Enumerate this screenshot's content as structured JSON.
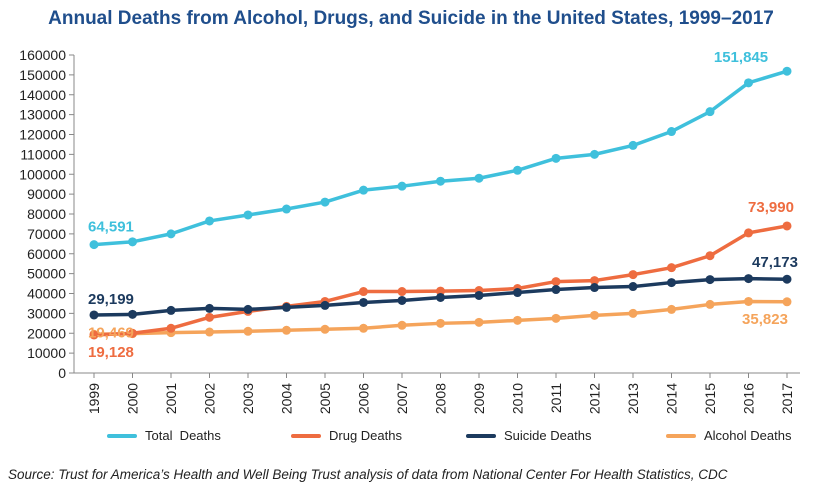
{
  "chart_data": {
    "type": "line",
    "title": "Annual Deaths from Alcohol, Drugs, and Suicide in the United States, 1999–2017",
    "xlabel": "",
    "ylabel": "",
    "categories": [
      "1999",
      "2000",
      "2001",
      "2002",
      "2003",
      "2004",
      "2005",
      "2006",
      "2007",
      "2008",
      "2009",
      "2010",
      "2011",
      "2012",
      "2013",
      "2014",
      "2015",
      "2016",
      "2017"
    ],
    "ylim": [
      0,
      160000
    ],
    "yticks": [
      "0",
      "10000",
      "20000",
      "30000",
      "40000",
      "50000",
      "60000",
      "70000",
      "80000",
      "90000",
      "100000",
      "110000",
      "120000",
      "130000",
      "140000",
      "150000",
      "160000"
    ],
    "grid": false,
    "legend_position": "bottom",
    "series": [
      {
        "name": "Total  Deaths",
        "color": "#3fc0dc",
        "values": [
          64591,
          66000,
          70000,
          76500,
          79500,
          82500,
          86000,
          92000,
          94000,
          96500,
          98000,
          102000,
          108000,
          110000,
          114500,
          121500,
          131500,
          146000,
          151845
        ]
      },
      {
        "name": "Drug Deaths",
        "color": "#ee6c40",
        "values": [
          19128,
          20000,
          22500,
          28000,
          31000,
          33500,
          36000,
          41000,
          41000,
          41200,
          41500,
          42500,
          46000,
          46500,
          49500,
          53000,
          59000,
          70500,
          73990
        ]
      },
      {
        "name": "Suicide Deaths",
        "color": "#1c3a5e",
        "values": [
          29199,
          29500,
          31500,
          32500,
          32000,
          33000,
          34000,
          35500,
          36500,
          38000,
          39000,
          40500,
          42000,
          43000,
          43500,
          45500,
          47000,
          47500,
          47173
        ]
      },
      {
        "name": "Alcohol Deaths",
        "color": "#f5a45b",
        "values": [
          19469,
          19800,
          20300,
          20600,
          21000,
          21500,
          22000,
          22500,
          24000,
          25000,
          25500,
          26500,
          27500,
          29000,
          30000,
          32000,
          34500,
          36000,
          35823
        ]
      }
    ],
    "annotations": [
      {
        "series": 0,
        "index": 0,
        "text": "64,591"
      },
      {
        "series": 0,
        "index": 18,
        "text": "151,845"
      },
      {
        "series": 1,
        "index": 0,
        "text": "19,128"
      },
      {
        "series": 1,
        "index": 18,
        "text": "73,990"
      },
      {
        "series": 2,
        "index": 0,
        "text": "29,199"
      },
      {
        "series": 2,
        "index": 18,
        "text": "47,173"
      },
      {
        "series": 3,
        "index": 0,
        "text": "19,469"
      },
      {
        "series": 3,
        "index": 18,
        "text": "35,823"
      }
    ]
  },
  "source_note": "Source: Trust for America’s Health and Well Being Trust analysis of data from National Center For Health Statistics, CDC"
}
